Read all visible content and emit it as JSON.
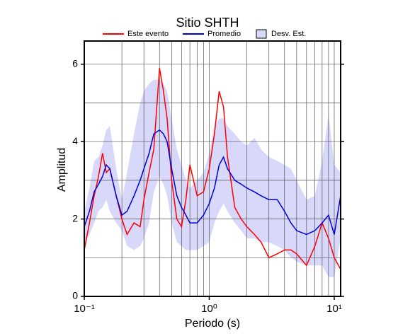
{
  "chart_data": {
    "type": "line",
    "title": "Sitio SHTH",
    "xlabel": "Periodo (s)",
    "ylabel": "Amplitud",
    "xscale": "log",
    "xlim": [
      0.1,
      11.25
    ],
    "ylim": [
      0,
      6.6
    ],
    "xticks": [
      {
        "value": 0.1,
        "label": "10⁻¹"
      },
      {
        "value": 1,
        "label": "10⁰"
      },
      {
        "value": 10,
        "label": "10¹"
      }
    ],
    "yticks": [
      0,
      2,
      4,
      6
    ],
    "xgrid": [
      0.2,
      0.3,
      0.4,
      0.5,
      0.6,
      0.7,
      0.8,
      0.9,
      1,
      2,
      3,
      4,
      5,
      6,
      7,
      8,
      9,
      10
    ],
    "ygrid": [
      1,
      2,
      3,
      4,
      5,
      6
    ],
    "x": [
      0.1,
      0.11,
      0.12,
      0.13,
      0.14,
      0.15,
      0.16,
      0.18,
      0.2,
      0.22,
      0.25,
      0.28,
      0.3,
      0.33,
      0.36,
      0.4,
      0.43,
      0.46,
      0.5,
      0.55,
      0.6,
      0.65,
      0.7,
      0.8,
      0.9,
      1.0,
      1.1,
      1.2,
      1.3,
      1.4,
      1.6,
      1.8,
      2.0,
      2.3,
      2.6,
      3.0,
      3.5,
      4.0,
      4.5,
      5.0,
      6.0,
      7.0,
      8.0,
      9.0,
      10,
      11.25
    ],
    "band": {
      "name": "Desv. Est.",
      "color": "#d8d8fb",
      "upper": [
        2.2,
        2.8,
        3.5,
        3.6,
        3.9,
        4.3,
        4.4,
        3.3,
        2.5,
        3.2,
        4.2,
        5.0,
        5.3,
        5.5,
        5.6,
        5.6,
        5.5,
        5.3,
        4.6,
        3.8,
        3.4,
        3.0,
        2.8,
        3.0,
        3.2,
        3.7,
        4.4,
        4.6,
        4.6,
        4.4,
        4.2,
        4.0,
        3.9,
        4.1,
        3.8,
        3.6,
        3.5,
        3.4,
        3.3,
        3.0,
        2.5,
        2.6,
        3.5,
        4.7,
        3.4,
        3.2
      ],
      "lower": [
        1.4,
        1.6,
        1.9,
        2.2,
        2.3,
        2.5,
        2.2,
        1.9,
        1.7,
        1.3,
        1.2,
        1.3,
        1.5,
        1.9,
        2.7,
        3.1,
        2.9,
        2.6,
        1.9,
        1.4,
        1.3,
        1.2,
        1.2,
        1.2,
        1.3,
        1.4,
        1.9,
        2.2,
        2.4,
        2.2,
        1.9,
        1.7,
        1.5,
        1.5,
        1.4,
        1.4,
        1.3,
        1.2,
        1.0,
        0.9,
        0.8,
        0.8,
        0.8,
        0.5,
        0.5,
        1.5
      ]
    },
    "series": [
      {
        "name": "Este evento",
        "color": "#ff0000",
        "values": [
          1.2,
          1.9,
          2.6,
          3.1,
          3.7,
          3.2,
          3.3,
          2.6,
          2.0,
          1.6,
          1.9,
          1.8,
          2.5,
          3.2,
          3.8,
          5.9,
          5.3,
          4.6,
          3.0,
          2.0,
          1.8,
          2.5,
          3.4,
          2.6,
          2.7,
          3.3,
          4.2,
          5.3,
          4.9,
          3.6,
          2.3,
          2.0,
          1.8,
          1.6,
          1.4,
          1.0,
          1.1,
          1.2,
          1.2,
          1.1,
          0.8,
          1.3,
          1.9,
          1.5,
          1.0,
          0.7
        ]
      },
      {
        "name": "Promedio",
        "color": "#0000dd",
        "values": [
          1.8,
          2.2,
          2.7,
          2.9,
          3.1,
          3.4,
          3.3,
          2.6,
          2.1,
          2.2,
          2.6,
          3.0,
          3.3,
          3.7,
          4.2,
          4.3,
          4.2,
          4.0,
          3.3,
          2.6,
          2.3,
          2.1,
          1.9,
          1.9,
          2.1,
          2.4,
          2.8,
          3.4,
          3.6,
          3.3,
          3.0,
          2.9,
          2.8,
          2.7,
          2.6,
          2.5,
          2.5,
          2.2,
          1.9,
          1.7,
          1.6,
          1.7,
          1.9,
          2.1,
          1.6,
          2.6
        ]
      }
    ]
  }
}
